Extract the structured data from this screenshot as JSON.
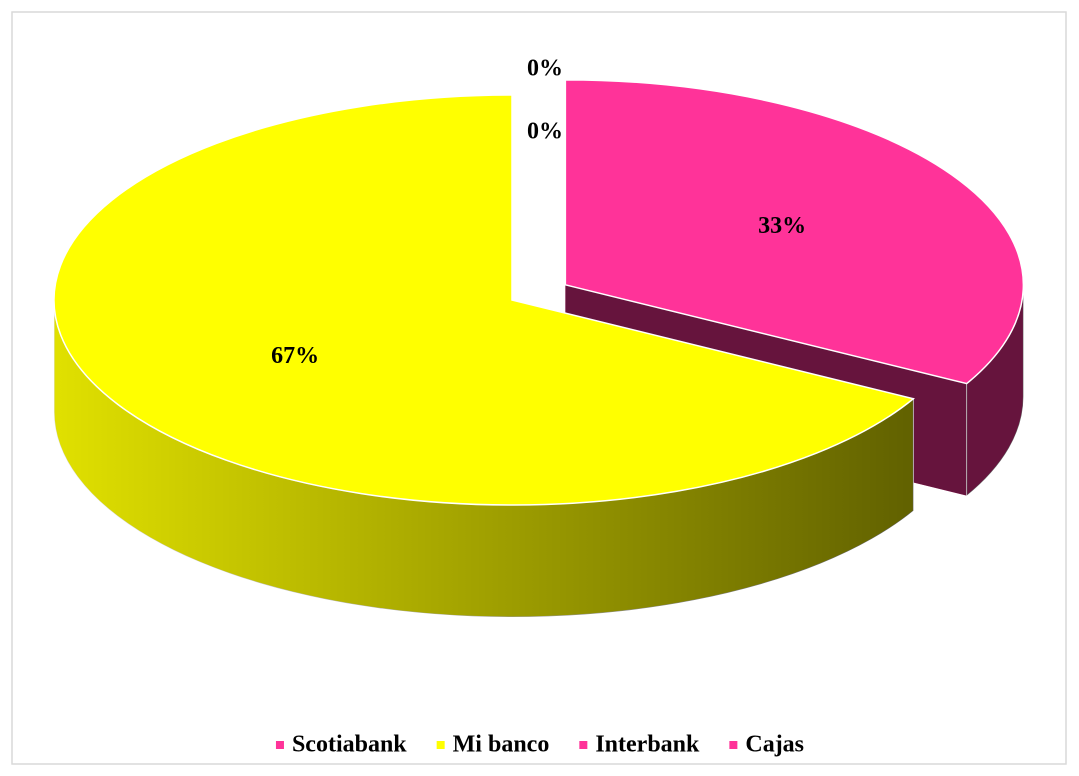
{
  "chart_data": {
    "type": "pie",
    "categories": [
      "Scotiabank",
      "Mi banco",
      "Interbank",
      "Cajas"
    ],
    "values": [
      33,
      67,
      0,
      0
    ],
    "value_labels": [
      "33%",
      "67%",
      "0%",
      "0%"
    ],
    "colors": [
      "#ff3399",
      "#ffff00",
      "#ff3399",
      "#ff3399"
    ],
    "exploded": "Scotiabank",
    "legend": "bottom"
  }
}
